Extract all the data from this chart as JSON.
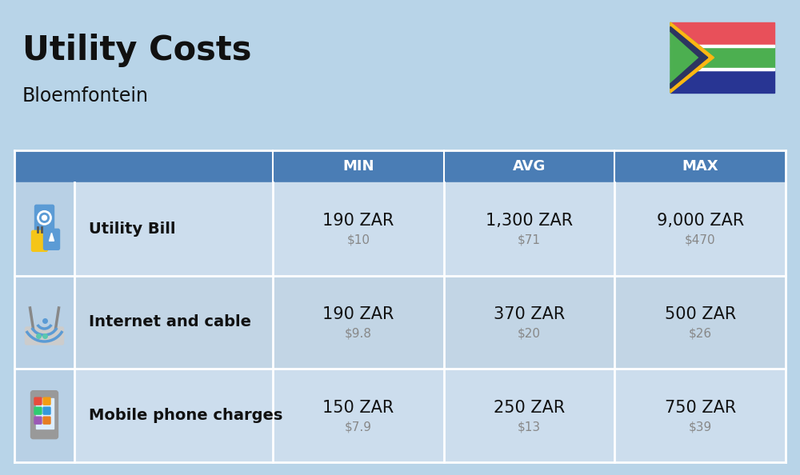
{
  "title": "Utility Costs",
  "subtitle": "Bloemfontein",
  "background_color": "#b8d4e8",
  "header_color": "#4a7db5",
  "header_text_color": "#ffffff",
  "row_colors": [
    "#ccdded",
    "#ccdded"
  ],
  "icon_col_color": "#b8d0e5",
  "col_headers": [
    "MIN",
    "AVG",
    "MAX"
  ],
  "rows": [
    {
      "label": "Utility Bill",
      "min_zar": "190 ZAR",
      "min_usd": "$10",
      "avg_zar": "1,300 ZAR",
      "avg_usd": "$71",
      "max_zar": "9,000 ZAR",
      "max_usd": "$470",
      "icon": "utility"
    },
    {
      "label": "Internet and cable",
      "min_zar": "190 ZAR",
      "min_usd": "$9.8",
      "avg_zar": "370 ZAR",
      "avg_usd": "$20",
      "max_zar": "500 ZAR",
      "max_usd": "$26",
      "icon": "internet"
    },
    {
      "label": "Mobile phone charges",
      "min_zar": "150 ZAR",
      "min_usd": "$7.9",
      "avg_zar": "250 ZAR",
      "avg_usd": "$13",
      "max_zar": "750 ZAR",
      "max_usd": "$39",
      "icon": "mobile"
    }
  ],
  "title_fontsize": 30,
  "subtitle_fontsize": 17,
  "header_fontsize": 13,
  "cell_zar_fontsize": 15,
  "cell_usd_fontsize": 11,
  "label_fontsize": 14,
  "usd_color": "#888888",
  "label_color": "#111111",
  "zar_color": "#111111",
  "title_color": "#111111"
}
